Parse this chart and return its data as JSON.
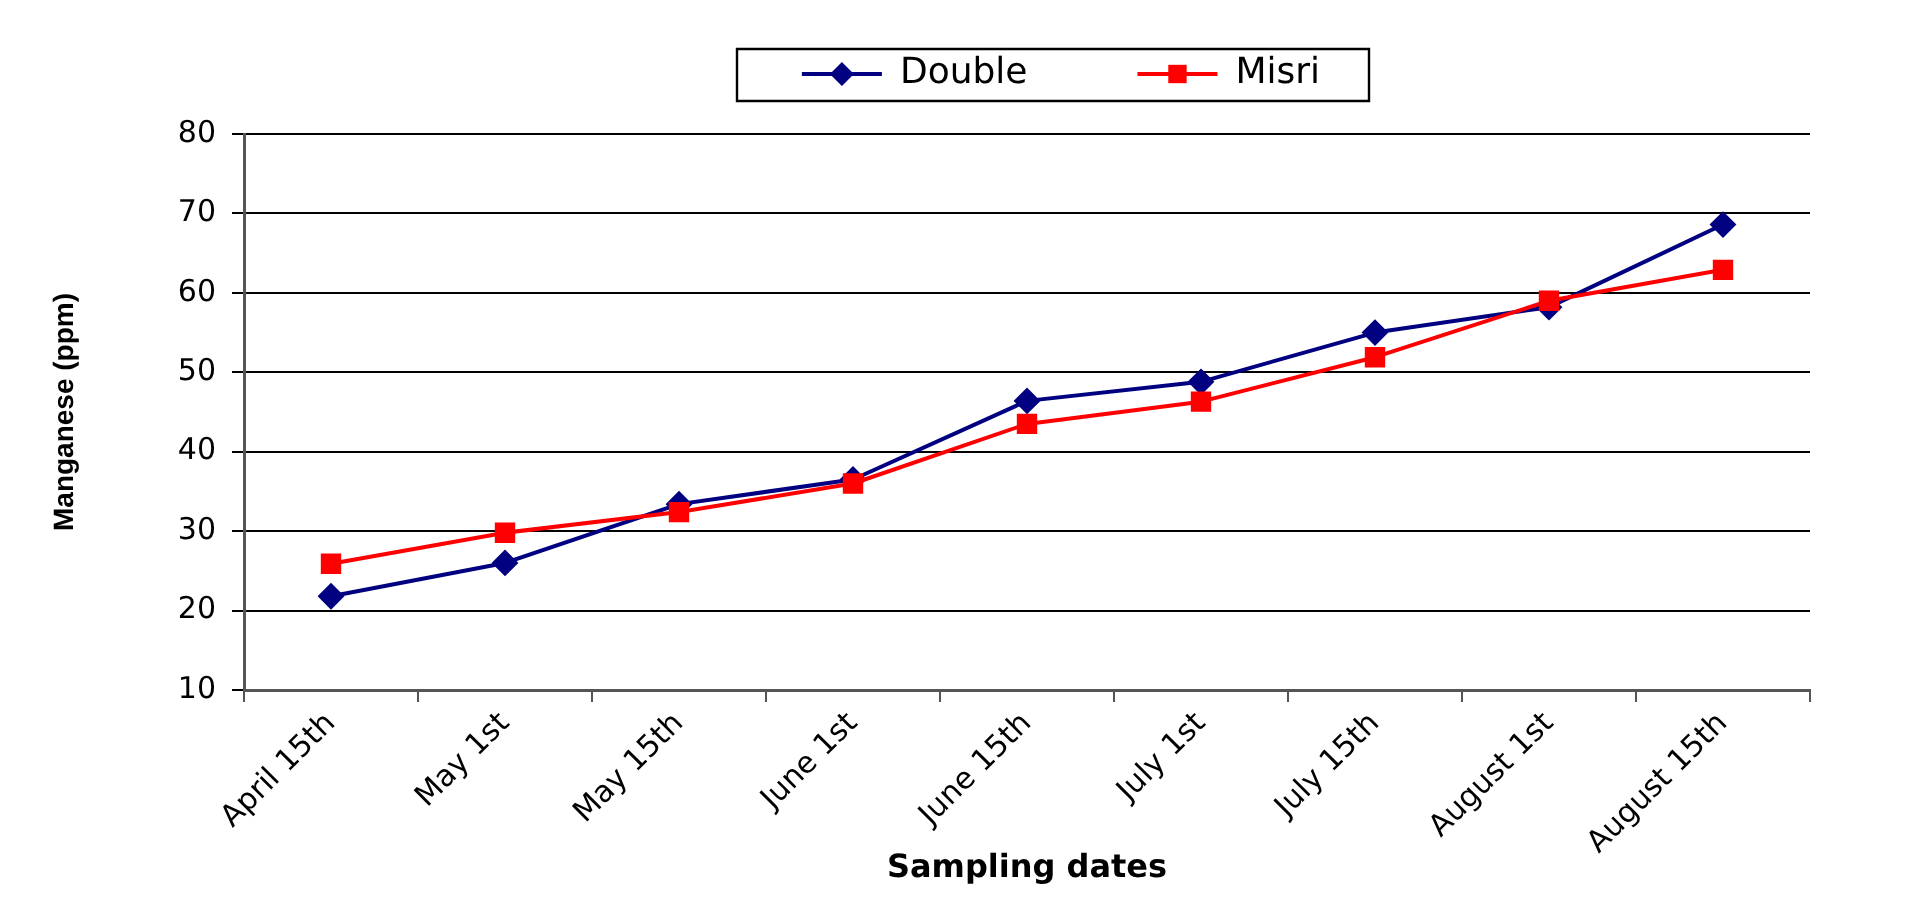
{
  "chart_data": {
    "type": "line",
    "xlabel": "Sampling dates",
    "ylabel": "Manganese (ppm)",
    "categories": [
      "April 15th",
      "May 1st",
      "May 15th",
      "June 1st",
      "June 15th",
      "July 1st",
      "July 15th",
      "August 1st",
      "August 15th"
    ],
    "series": [
      {
        "name": "Double",
        "color": "#000080",
        "marker": "diamond",
        "values": [
          21.8,
          26.0,
          33.4,
          36.5,
          46.4,
          48.8,
          55.0,
          58.2,
          68.6
        ]
      },
      {
        "name": "Misri",
        "color": "#ff0000",
        "marker": "square",
        "values": [
          25.9,
          29.8,
          32.4,
          36.0,
          43.5,
          46.3,
          51.9,
          59.0,
          62.9
        ]
      }
    ],
    "ylim": [
      10,
      80
    ],
    "yticks": [
      10,
      20,
      30,
      40,
      50,
      60,
      70,
      80
    ],
    "grid": "y",
    "legend": "top",
    "line_style": "solid"
  }
}
